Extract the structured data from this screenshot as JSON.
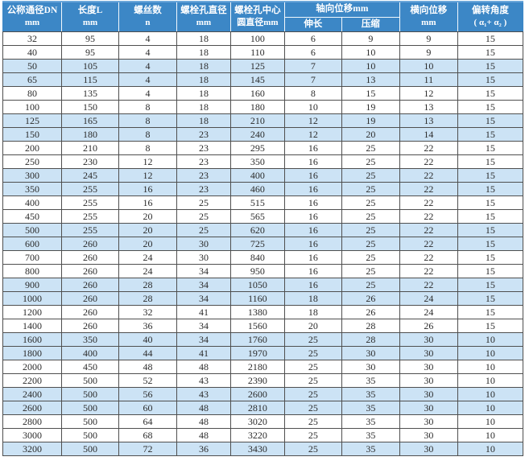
{
  "colors": {
    "header_bg": "#3c87c6",
    "header_text": "#ffffff",
    "alt_row_bg": "#cce3f5",
    "border_dark": "#4f4f4f",
    "header_separator": "#f2f8fd"
  },
  "table": {
    "headers": {
      "dn": {
        "line1": "公称通径DN",
        "line2": "mm"
      },
      "length": {
        "line1": "长度L",
        "line2": "mm"
      },
      "screws": {
        "line1": "螺丝数",
        "line2": "n"
      },
      "bolt_hole_dia": {
        "line1": "螺栓孔直径",
        "line2": "mm"
      },
      "bolt_circle_dia": {
        "line1": "螺栓孔中心",
        "line2": "圆直径mm"
      },
      "axial_group": "轴向位移mm",
      "axial_elongation": "伸长",
      "axial_compression": "压缩",
      "lateral": {
        "line1": "横向位移",
        "line2": "mm"
      },
      "deflection": {
        "line1": "偏转角度",
        "line2": "( α₁+ α₂ )"
      }
    },
    "rows": [
      [
        32,
        95,
        4,
        18,
        100,
        6,
        9,
        9,
        15
      ],
      [
        40,
        95,
        4,
        18,
        110,
        6,
        10,
        9,
        15
      ],
      [
        50,
        105,
        4,
        18,
        125,
        7,
        10,
        10,
        15
      ],
      [
        65,
        115,
        4,
        18,
        145,
        7,
        13,
        11,
        15
      ],
      [
        80,
        135,
        4,
        18,
        160,
        8,
        15,
        12,
        15
      ],
      [
        100,
        150,
        8,
        18,
        180,
        10,
        19,
        13,
        15
      ],
      [
        125,
        165,
        8,
        18,
        210,
        12,
        19,
        13,
        15
      ],
      [
        150,
        180,
        8,
        23,
        240,
        12,
        20,
        14,
        15
      ],
      [
        200,
        210,
        8,
        23,
        295,
        16,
        25,
        22,
        15
      ],
      [
        250,
        230,
        12,
        23,
        350,
        16,
        25,
        22,
        15
      ],
      [
        300,
        245,
        12,
        23,
        400,
        16,
        25,
        22,
        15
      ],
      [
        350,
        255,
        16,
        23,
        460,
        16,
        25,
        22,
        15
      ],
      [
        400,
        255,
        16,
        25,
        515,
        16,
        25,
        22,
        15
      ],
      [
        450,
        255,
        20,
        25,
        565,
        16,
        25,
        22,
        15
      ],
      [
        500,
        255,
        20,
        25,
        620,
        16,
        25,
        22,
        15
      ],
      [
        600,
        260,
        20,
        30,
        725,
        16,
        25,
        22,
        15
      ],
      [
        700,
        260,
        24,
        30,
        840,
        16,
        25,
        22,
        15
      ],
      [
        800,
        260,
        24,
        34,
        950,
        16,
        25,
        22,
        15
      ],
      [
        900,
        260,
        28,
        34,
        1050,
        16,
        25,
        22,
        15
      ],
      [
        1000,
        260,
        28,
        34,
        1160,
        18,
        26,
        24,
        15
      ],
      [
        1200,
        260,
        32,
        41,
        1380,
        18,
        26,
        24,
        15
      ],
      [
        1400,
        260,
        36,
        34,
        1560,
        20,
        28,
        26,
        15
      ],
      [
        1600,
        350,
        40,
        34,
        1760,
        25,
        28,
        30,
        10
      ],
      [
        1800,
        400,
        44,
        41,
        1970,
        25,
        30,
        30,
        10
      ],
      [
        2000,
        450,
        48,
        48,
        2180,
        25,
        30,
        30,
        10
      ],
      [
        2200,
        500,
        52,
        43,
        2390,
        25,
        35,
        30,
        10
      ],
      [
        2400,
        500,
        56,
        43,
        2600,
        25,
        35,
        30,
        10
      ],
      [
        2600,
        500,
        60,
        48,
        2810,
        25,
        35,
        30,
        10
      ],
      [
        2800,
        500,
        64,
        48,
        3020,
        25,
        35,
        30,
        10
      ],
      [
        3000,
        500,
        68,
        48,
        3220,
        25,
        35,
        30,
        10
      ],
      [
        3200,
        500,
        72,
        36,
        3430,
        25,
        35,
        30,
        10
      ]
    ]
  }
}
